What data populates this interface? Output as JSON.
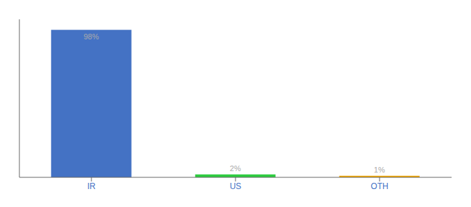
{
  "chart_data": {
    "type": "bar",
    "categories": [
      "IR",
      "US",
      "OTH"
    ],
    "values": [
      98,
      2,
      1
    ],
    "value_labels": [
      "98%",
      "2%",
      "1%"
    ],
    "colors": [
      "#4472c4",
      "#2ecc40",
      "#f0a500"
    ],
    "ylim": [
      0,
      105
    ],
    "data_labels": true,
    "tick_labels": "x",
    "grid": false
  }
}
